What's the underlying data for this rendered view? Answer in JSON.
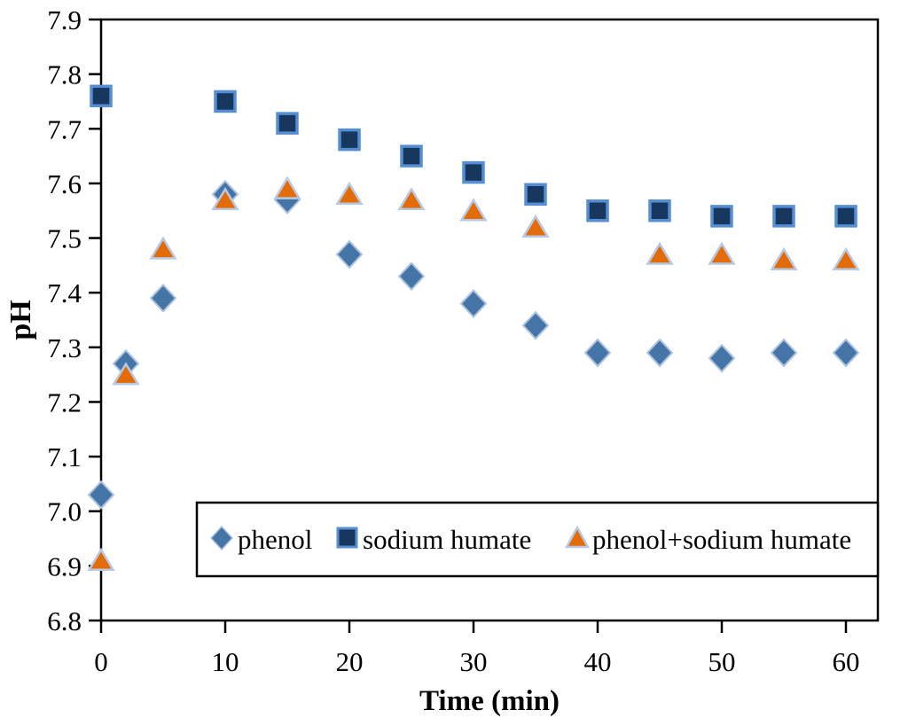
{
  "figure": {
    "x_axis_title": "Time (min)",
    "y_axis_title": "pH"
  },
  "legend": {
    "items": [
      {
        "label": "phenol",
        "marker": "diamond-icon"
      },
      {
        "label": "sodium humate",
        "marker": "square-icon"
      },
      {
        "label": "phenol+sodium humate",
        "marker": "triangle-icon"
      }
    ]
  },
  "colors": {
    "diamond_fill": "#4575A7",
    "diamond_stroke": "#ADC4E0",
    "square_fill": "#17375E",
    "square_stroke": "#558ED5",
    "triangle_fill": "#E36C09",
    "triangle_stroke": "#B7C9E5",
    "axis": "#000000",
    "background": "#FFFFFF"
  },
  "chart_data": {
    "type": "scatter",
    "title": "",
    "xlabel": "Time (min)",
    "ylabel": "pH",
    "x": [
      0,
      2,
      5,
      10,
      15,
      20,
      25,
      30,
      35,
      40,
      45,
      50,
      55,
      60
    ],
    "series": [
      {
        "name": "phenol",
        "marker": "diamond",
        "values": [
          7.03,
          7.27,
          7.39,
          7.58,
          7.57,
          7.47,
          7.43,
          7.38,
          7.34,
          7.29,
          7.29,
          7.28,
          7.29,
          7.29
        ]
      },
      {
        "name": "sodium humate",
        "marker": "square",
        "values": [
          7.76,
          null,
          null,
          7.75,
          7.71,
          7.68,
          7.65,
          7.62,
          7.58,
          7.55,
          7.55,
          7.54,
          7.54,
          7.54
        ]
      },
      {
        "name": "phenol+sodium humate",
        "marker": "triangle",
        "values": [
          6.91,
          7.25,
          7.48,
          7.57,
          7.59,
          7.58,
          7.57,
          7.55,
          7.52,
          null,
          7.47,
          7.47,
          7.46,
          7.46
        ]
      }
    ],
    "xlim": [
      0,
      60
    ],
    "ylim": [
      6.8,
      7.9
    ],
    "x_ticks": [
      0,
      10,
      20,
      30,
      40,
      50,
      60
    ],
    "y_ticks": [
      6.8,
      6.9,
      7.0,
      7.1,
      7.2,
      7.3,
      7.4,
      7.5,
      7.6,
      7.7,
      7.8,
      7.9
    ],
    "grid": false,
    "legend_position": "inside-bottom-center"
  }
}
